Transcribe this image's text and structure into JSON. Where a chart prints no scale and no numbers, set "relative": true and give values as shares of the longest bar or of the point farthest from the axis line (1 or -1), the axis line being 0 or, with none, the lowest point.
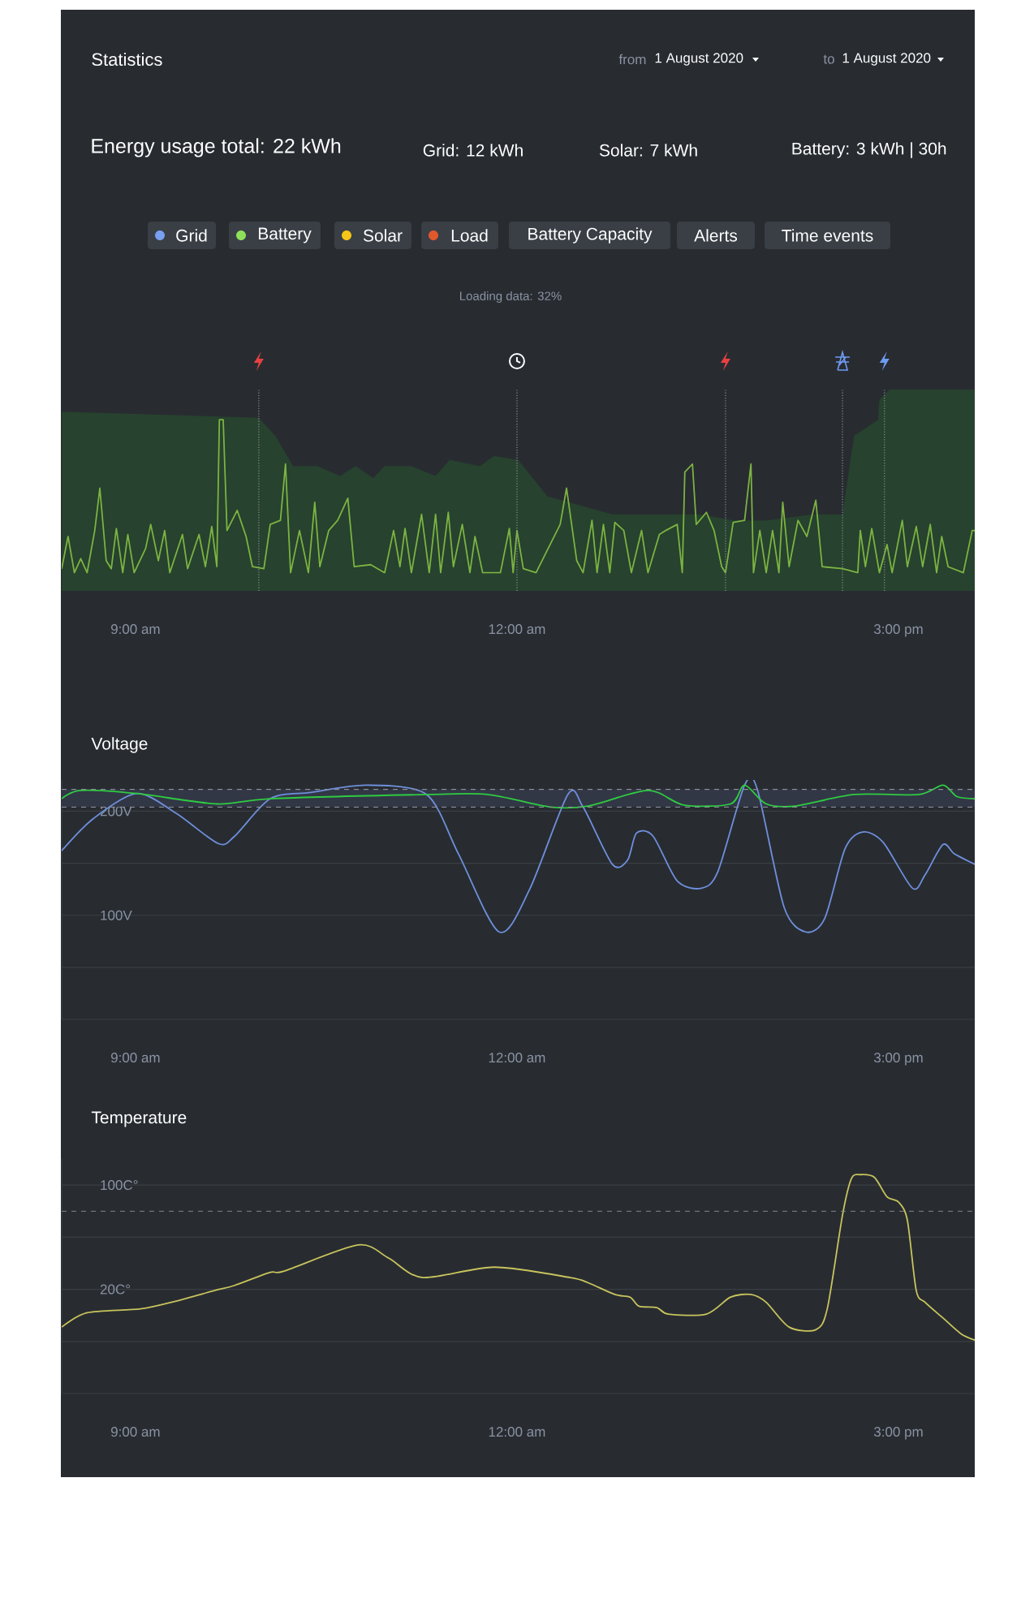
{
  "chart_data": [
    {
      "type": "other",
      "title": "Statistics",
      "annotations": [
        "from",
        "1 August 2020",
        "to",
        "1 August 2020",
        "Energy usage total: 22 kWh",
        "Grid: 12 kWh",
        "Solar: 7 kWh",
        "Battery: 3 kWh | 30h",
        "Grid",
        "Battery",
        "Solar",
        "Load",
        "Battery Capacity",
        "Alerts",
        "Time events",
        "Loading data: 32%"
      ]
    },
    {
      "type": "line",
      "relative": true,
      "xlim": [
        8.42,
        15.6
      ],
      "xticks": [
        {
          "value": 9,
          "label": "9:00 am"
        },
        {
          "value": 12,
          "label": "12:00 am"
        },
        {
          "value": 15,
          "label": "3:00 pm"
        }
      ],
      "series": [
        {
          "type": "area",
          "color": "#27422e",
          "x": [
            8.42,
            9.97,
            10.1,
            10.24,
            10.43,
            10.61,
            10.73,
            10.87,
            10.96,
            11.17,
            11.36,
            11.47,
            11.71,
            11.82,
            12.01,
            12.24,
            12.75,
            13.45,
            13.7,
            13.96,
            14.33,
            14.56,
            14.65,
            14.84,
            14.85,
            14.93,
            15.6
          ],
          "values": [
            0.89,
            0.86,
            0.77,
            0.62,
            0.62,
            0.57,
            0.62,
            0.56,
            0.62,
            0.62,
            0.57,
            0.65,
            0.62,
            0.67,
            0.65,
            0.47,
            0.38,
            0.38,
            0.35,
            0.35,
            0.38,
            0.38,
            0.77,
            0.85,
            0.95,
            1,
            1
          ]
        },
        {
          "type": "line",
          "color": "#7cb342",
          "x": [
            8.42,
            8.47,
            8.52,
            8.57,
            8.62,
            8.68,
            8.72,
            8.77,
            8.81,
            8.85,
            8.9,
            8.94,
            8.99,
            9.08,
            9.12,
            9.18,
            9.23,
            9.27,
            9.37,
            9.41,
            9.5,
            9.55,
            9.6,
            9.64,
            9.66,
            9.69,
            9.72,
            9.8,
            9.87,
            9.92,
            10.01,
            10.06,
            10.14,
            10.18,
            10.22,
            10.29,
            10.36,
            10.41,
            10.45,
            10.52,
            10.59,
            10.67,
            10.72,
            10.85,
            10.96,
            11.03,
            11.08,
            11.12,
            11.17,
            11.25,
            11.31,
            11.36,
            11.4,
            11.46,
            11.5,
            11.57,
            11.63,
            11.67,
            11.73,
            11.87,
            11.94,
            11.97,
            12.0,
            12.05,
            12.15,
            12.34,
            12.39,
            12.47,
            12.52,
            12.59,
            12.63,
            12.68,
            12.73,
            12.77,
            12.84,
            12.9,
            12.98,
            13.03,
            13.12,
            13.17,
            13.26,
            13.3,
            13.32,
            13.38,
            13.41,
            13.49,
            13.55,
            13.61,
            13.64,
            13.7,
            13.79,
            13.84,
            13.86,
            13.91,
            13.96,
            14.01,
            14.06,
            14.09,
            14.14,
            14.21,
            14.28,
            14.35,
            14.4,
            14.56,
            14.68,
            14.7,
            14.74,
            14.79,
            14.85,
            14.91,
            14.95,
            15.03,
            15.07,
            15.14,
            15.19,
            15.25,
            15.3,
            15.34,
            15.39,
            15.51,
            15.58,
            15.6
          ],
          "values": [
            0.11,
            0.27,
            0.09,
            0.16,
            0.09,
            0.3,
            0.51,
            0.15,
            0.11,
            0.31,
            0.09,
            0.28,
            0.09,
            0.21,
            0.33,
            0.15,
            0.3,
            0.09,
            0.28,
            0.11,
            0.28,
            0.12,
            0.32,
            0.12,
            0.85,
            0.85,
            0.3,
            0.4,
            0.27,
            0.12,
            0.11,
            0.33,
            0.35,
            0.63,
            0.09,
            0.3,
            0.09,
            0.44,
            0.12,
            0.3,
            0.35,
            0.46,
            0.12,
            0.13,
            0.09,
            0.3,
            0.12,
            0.31,
            0.09,
            0.38,
            0.09,
            0.38,
            0.09,
            0.39,
            0.12,
            0.33,
            0.09,
            0.27,
            0.09,
            0.09,
            0.31,
            0.09,
            0.3,
            0.11,
            0.09,
            0.33,
            0.51,
            0.15,
            0.09,
            0.35,
            0.09,
            0.33,
            0.09,
            0.34,
            0.3,
            0.09,
            0.3,
            0.09,
            0.28,
            0.3,
            0.33,
            0.09,
            0.59,
            0.63,
            0.33,
            0.39,
            0.3,
            0.12,
            0.09,
            0.34,
            0.35,
            0.63,
            0.09,
            0.3,
            0.09,
            0.3,
            0.09,
            0.44,
            0.12,
            0.35,
            0.27,
            0.45,
            0.12,
            0.11,
            0.09,
            0.3,
            0.12,
            0.31,
            0.09,
            0.23,
            0.09,
            0.35,
            0.12,
            0.32,
            0.12,
            0.33,
            0.09,
            0.27,
            0.12,
            0.09,
            0.3,
            0.3
          ]
        }
      ],
      "ref_lines": [
        {
          "axis": "x",
          "value": 9.97,
          "line_style": "dotted",
          "color": "#8c9099"
        },
        {
          "axis": "x",
          "value": 12.0,
          "line_style": "dotted",
          "color": "#8c9099"
        },
        {
          "axis": "x",
          "value": 13.64,
          "line_style": "dotted",
          "color": "#8c9099"
        },
        {
          "axis": "x",
          "value": 14.56,
          "line_style": "dotted",
          "color": "#8c9099"
        },
        {
          "axis": "x",
          "value": 14.89,
          "line_style": "dotted",
          "color": "#8c9099"
        }
      ]
    },
    {
      "type": "line",
      "title": "Voltage",
      "xlim": [
        8.42,
        15.6
      ],
      "ylim": [
        0,
        230
      ],
      "grid": "y",
      "xticks": [
        {
          "value": 9,
          "label": "9:00 am"
        },
        {
          "value": 12,
          "label": "12:00 am"
        },
        {
          "value": 15,
          "label": "3:00 pm"
        }
      ],
      "yticks": [
        {
          "value": 0,
          "label": null
        },
        {
          "value": 50,
          "label": null
        },
        {
          "value": 100,
          "label": "100V"
        },
        {
          "value": 150,
          "label": null
        },
        {
          "value": 200,
          "label": "200V"
        }
      ],
      "bands": [
        {
          "axis": "y",
          "from": 204,
          "to": 221,
          "color": "#323746"
        }
      ],
      "ref_lines": [
        {
          "axis": "y",
          "value": 204,
          "line_style": "dashed",
          "color": "#8c9099"
        },
        {
          "axis": "y",
          "value": 221,
          "line_style": "dashed",
          "color": "#8c9099"
        }
      ],
      "series": [
        {
          "color": "#6f8fdc",
          "x": [
            8.42,
            8.67,
            9.01,
            9.32,
            9.65,
            9.78,
            10.06,
            10.38,
            10.82,
            11.29,
            11.54,
            11.86,
            12.1,
            12.4,
            12.52,
            12.75,
            12.87,
            12.94,
            13.07,
            13.26,
            13.45,
            13.58,
            13.79,
            13.89,
            14.1,
            14.27,
            14.42,
            14.58,
            14.72,
            14.88,
            15.11,
            15.21,
            15.35,
            15.44,
            15.6
          ],
          "values": [
            162,
            193,
            217,
            198,
            169,
            176,
            212,
            218,
            225,
            216,
            159,
            84,
            125,
            216,
            204,
            149,
            153,
            179,
            176,
            133,
            126,
            142,
            225,
            221,
            108,
            84,
            97,
            164,
            180,
            170,
            126,
            139,
            168,
            159,
            149
          ]
        },
        {
          "color": "#2ecc40",
          "x": [
            8.42,
            8.57,
            9.01,
            9.64,
            10.06,
            11.29,
            11.77,
            12.26,
            12.56,
            13.03,
            13.31,
            13.68,
            13.79,
            13.96,
            14.19,
            14.65,
            15.16,
            15.35,
            15.46,
            15.6
          ],
          "values": [
            212,
            220,
            217,
            207,
            212,
            216,
            216,
            204,
            205,
            220,
            206,
            207,
            225,
            207,
            205,
            216,
            216,
            225,
            214,
            212
          ]
        }
      ]
    },
    {
      "type": "line",
      "title": "Temperature",
      "xlim": [
        8.42,
        15.6
      ],
      "ylim": [
        -60,
        120
      ],
      "grid": "y",
      "xticks": [
        {
          "value": 9,
          "label": "9:00 am"
        },
        {
          "value": 12,
          "label": "12:00 am"
        },
        {
          "value": 15,
          "label": "3:00 pm"
        }
      ],
      "yticks": [
        {
          "value": -60,
          "label": null
        },
        {
          "value": -20,
          "label": null
        },
        {
          "value": 20,
          "label": "20C°"
        },
        {
          "value": 60,
          "label": null
        },
        {
          "value": 100,
          "label": "100C°"
        }
      ],
      "ref_lines": [
        {
          "axis": "y",
          "value": 80,
          "line_style": "dashed",
          "color": "#8c9099"
        }
      ],
      "series": [
        {
          "color": "#c9c45c",
          "x": [
            8.42,
            8.62,
            9.04,
            9.32,
            9.62,
            9.78,
            10.06,
            10.17,
            10.75,
            10.99,
            11.26,
            11.82,
            12.42,
            12.56,
            12.77,
            12.89,
            12.96,
            13.1,
            13.19,
            13.49,
            13.68,
            13.84,
            13.96,
            14.14,
            14.35,
            14.44,
            14.56,
            14.63,
            14.7,
            14.81,
            14.91,
            15.0,
            15.07,
            15.14,
            15.21,
            15.35,
            15.49,
            15.6
          ],
          "values": [
            -9,
            2,
            5,
            11,
            19,
            23,
            33,
            34,
            54,
            44,
            29,
            37,
            29,
            25,
            16,
            14,
            7,
            6,
            1,
            1,
            14,
            16,
            10,
            -9,
            -11,
            5,
            77,
            105,
            108,
            106,
            91,
            87,
            73,
            19,
            10,
            -2,
            -14,
            -19
          ]
        }
      ]
    }
  ]
}
